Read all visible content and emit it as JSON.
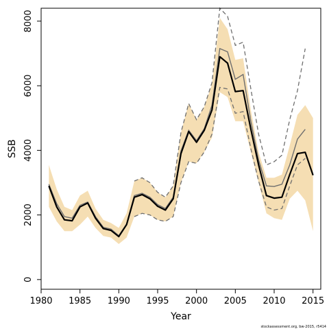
{
  "chart_data": {
    "type": "line",
    "xlabel": "Year",
    "ylabel": "SSB",
    "footnote": "stockassessment.org, bw-2015, r5414",
    "xlim": [
      1980,
      2016
    ],
    "ylim": [
      -300,
      8400
    ],
    "x_ticks": [
      1980,
      1985,
      1990,
      1995,
      2000,
      2005,
      2010,
      2015
    ],
    "y_ticks": [
      0,
      2000,
      4000,
      6000,
      8000
    ],
    "x": [
      1981,
      1982,
      1983,
      1984,
      1985,
      1986,
      1987,
      1988,
      1989,
      1990,
      1991,
      1992,
      1993,
      1994,
      1995,
      1996,
      1997,
      1998,
      1999,
      2000,
      2001,
      2002,
      2003,
      2004,
      2005,
      2006,
      2007,
      2008,
      2009,
      2010,
      2011,
      2012,
      2013,
      2014,
      2015
    ],
    "ci_band": {
      "color": "#f5deb3",
      "upper": [
        3550,
        2800,
        2250,
        2150,
        2600,
        2750,
        2200,
        1850,
        1750,
        1600,
        2050,
        3050,
        3150,
        3000,
        2700,
        2550,
        2900,
        4550,
        5450,
        4950,
        5350,
        6050,
        8100,
        7750,
        6800,
        6850,
        5250,
        3950,
        3150,
        3150,
        3250,
        4150,
        5100,
        5400,
        5000
      ],
      "lower": [
        2250,
        1800,
        1500,
        1500,
        1700,
        1950,
        1600,
        1350,
        1300,
        1100,
        1300,
        1950,
        2050,
        2000,
        1850,
        1800,
        1950,
        3000,
        3650,
        3600,
        3950,
        4400,
        5800,
        5650,
        4900,
        4900,
        3950,
        3000,
        2050,
        1900,
        1850,
        2500,
        2750,
        2450,
        1500
      ]
    },
    "series": [
      {
        "name": "",
        "color": "#000000",
        "values": [
          2900,
          2250,
          1850,
          1820,
          2250,
          2370,
          1900,
          1580,
          1520,
          1330,
          1700,
          2550,
          2630,
          2500,
          2270,
          2150,
          2500,
          3900,
          4580,
          4250,
          4620,
          5250,
          6900,
          6700,
          5820,
          5850,
          4650,
          3550,
          2600,
          2520,
          2550,
          3250,
          3900,
          3940,
          3230
        ]
      },
      {
        "name": "",
        "color": "#6e6e6e",
        "values": [
          2950,
          2350,
          1950,
          1900,
          2300,
          2400,
          1950,
          1620,
          1560,
          1360,
          1720,
          2600,
          2670,
          2550,
          2320,
          2200,
          2550,
          3980,
          4620,
          4300,
          4670,
          5400,
          7150,
          7050,
          6200,
          6350,
          4900,
          3700,
          2900,
          2880,
          2950,
          3550,
          4350,
          4650,
          null
        ]
      }
    ],
    "dashed_bounds": {
      "color": "#6e6e6e",
      "upper": [
        null,
        null,
        null,
        null,
        null,
        null,
        null,
        null,
        null,
        null,
        null,
        3050,
        3150,
        3000,
        2700,
        2550,
        2900,
        4550,
        5450,
        4950,
        5350,
        6100,
        8400,
        8150,
        7250,
        7350,
        5900,
        4500,
        3550,
        3650,
        3850,
        4950,
        5850,
        7150,
        null
      ],
      "lower": [
        null,
        null,
        null,
        null,
        null,
        null,
        null,
        null,
        null,
        null,
        null,
        1950,
        2050,
        2000,
        1850,
        1800,
        1950,
        3000,
        3650,
        3600,
        3950,
        4500,
        5950,
        5900,
        5150,
        5200,
        4050,
        3050,
        2250,
        2150,
        2200,
        2900,
        3550,
        3750,
        null
      ]
    }
  }
}
